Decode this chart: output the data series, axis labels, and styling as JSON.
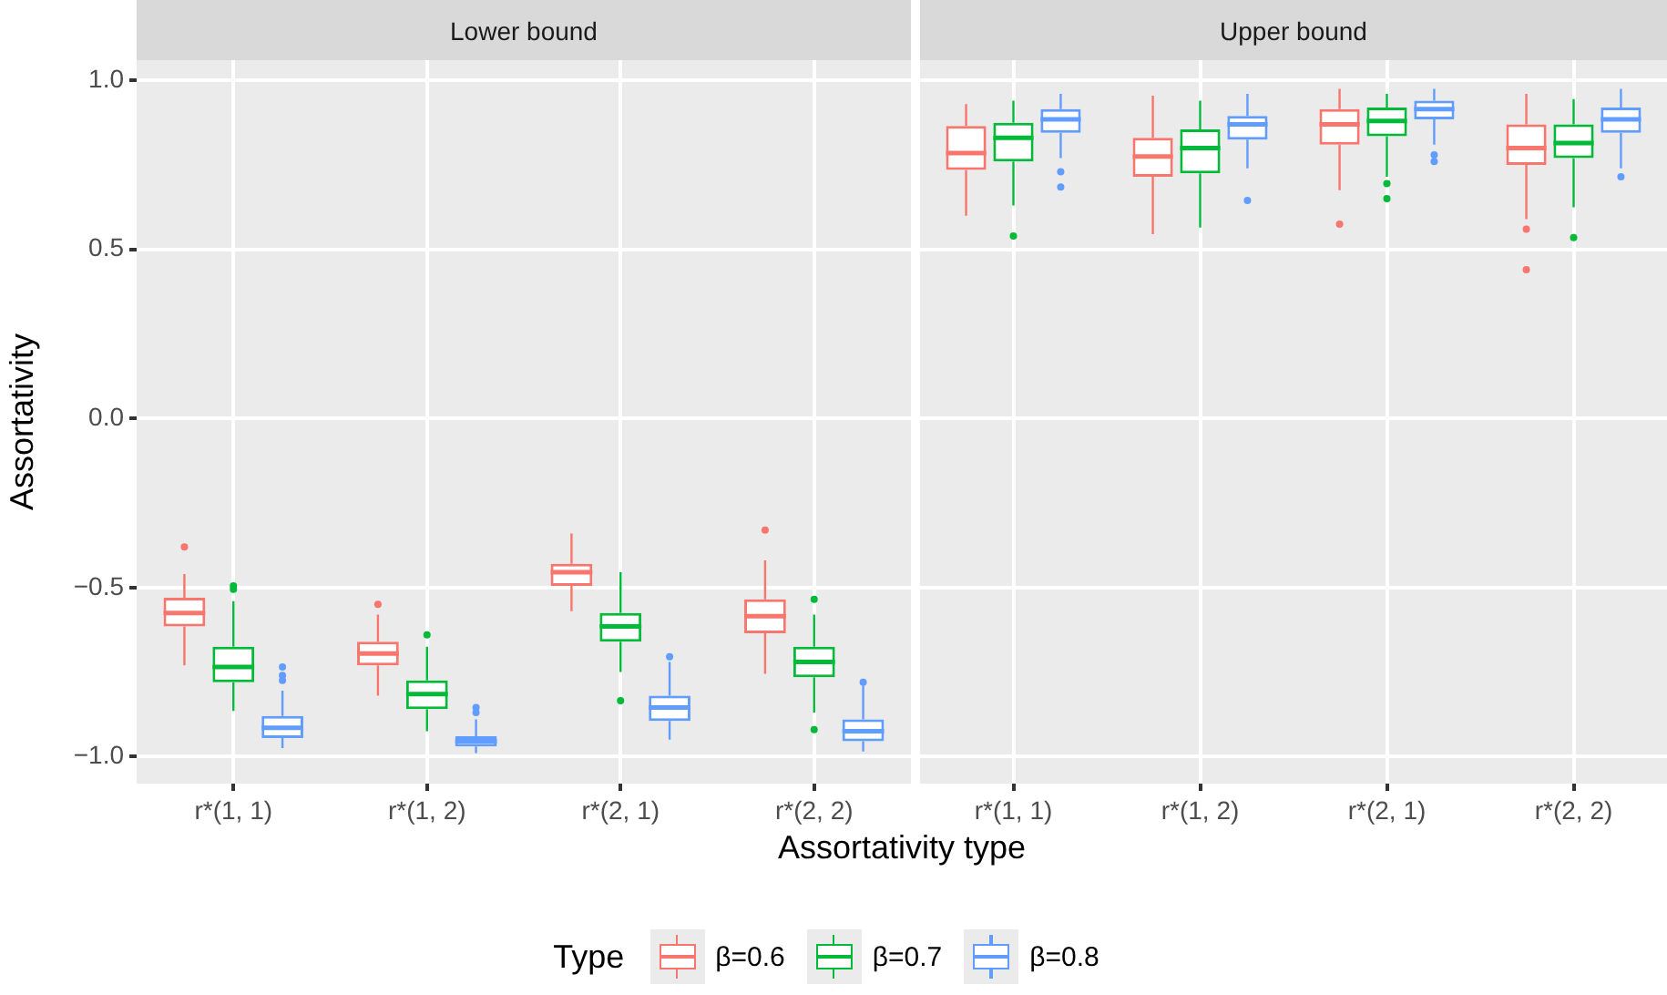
{
  "chart_data": [
    {
      "type": "box",
      "title": "Lower bound",
      "xlabel": "Assortativity type",
      "ylabel": "Assortativity",
      "legend_title": "Type",
      "legend": "bottom",
      "grid": true,
      "categories": [
        "r*(1, 1)",
        "r*(1, 2)",
        "r*(2, 1)",
        "r*(2, 2)"
      ],
      "ylim": [
        -1.08,
        1.06
      ],
      "yticks": [
        {
          "value": -1,
          "label": "−1.0"
        },
        {
          "value": -0.5,
          "label": "−0.5"
        },
        {
          "value": 0,
          "label": "0.0"
        },
        {
          "value": 0.5,
          "label": "0.5"
        },
        {
          "value": 1,
          "label": "1.0"
        }
      ],
      "series": [
        {
          "name": "β=0.6",
          "color": "#f8766d",
          "boxes": [
            {
              "low": -0.73,
              "q1": -0.615,
              "median": -0.575,
              "q3": -0.53,
              "high": -0.46,
              "outliers": [
                -0.38
              ]
            },
            {
              "low": -0.82,
              "q1": -0.73,
              "median": -0.695,
              "q3": -0.66,
              "high": -0.58,
              "outliers": [
                -0.55
              ]
            },
            {
              "low": -0.57,
              "q1": -0.495,
              "median": -0.455,
              "q3": -0.43,
              "high": -0.34
            },
            {
              "low": -0.755,
              "q1": -0.635,
              "median": -0.585,
              "q3": -0.535,
              "high": -0.42,
              "outliers": [
                -0.33
              ]
            }
          ]
        },
        {
          "name": "β=0.7",
          "color": "#00ba38",
          "boxes": [
            {
              "low": -0.865,
              "q1": -0.78,
              "median": -0.735,
              "q3": -0.675,
              "high": -0.54,
              "outliers": [
                -0.495,
                -0.505
              ]
            },
            {
              "low": -0.925,
              "q1": -0.86,
              "median": -0.815,
              "q3": -0.775,
              "high": -0.675,
              "outliers": [
                -0.64
              ]
            },
            {
              "low": -0.75,
              "q1": -0.66,
              "median": -0.615,
              "q3": -0.575,
              "high": -0.455,
              "outliers": [
                -0.835
              ]
            },
            {
              "low": -0.87,
              "q1": -0.765,
              "median": -0.72,
              "q3": -0.675,
              "high": -0.58,
              "outliers": [
                -0.535,
                -0.92
              ]
            }
          ]
        },
        {
          "name": "β=0.8",
          "color": "#619cff",
          "boxes": [
            {
              "low": -0.975,
              "q1": -0.945,
              "median": -0.915,
              "q3": -0.88,
              "high": -0.805,
              "outliers": [
                -0.735,
                -0.76,
                -0.775
              ]
            },
            {
              "low": -0.99,
              "q1": -0.97,
              "median": -0.955,
              "q3": -0.94,
              "high": -0.89,
              "outliers": [
                -0.855,
                -0.87
              ]
            },
            {
              "low": -0.95,
              "q1": -0.895,
              "median": -0.855,
              "q3": -0.82,
              "high": -0.72,
              "outliers": [
                -0.705
              ]
            },
            {
              "low": -0.985,
              "q1": -0.955,
              "median": -0.925,
              "q3": -0.89,
              "high": -0.79,
              "outliers": [
                -0.78
              ]
            }
          ]
        }
      ]
    },
    {
      "type": "box",
      "title": "Upper bound",
      "grid": true,
      "tick_labels": "x",
      "categories": [
        "r*(1, 1)",
        "r*(1, 2)",
        "r*(2, 1)",
        "r*(2, 2)"
      ],
      "ylim": [
        -1.08,
        1.06
      ],
      "yticks": [
        -1,
        -0.5,
        0,
        0.5,
        1
      ],
      "series": [
        {
          "color": "#f8766d",
          "boxes": [
            {
              "low": 0.6,
              "q1": 0.735,
              "median": 0.785,
              "q3": 0.865,
              "high": 0.93
            },
            {
              "low": 0.545,
              "q1": 0.715,
              "median": 0.775,
              "q3": 0.83,
              "high": 0.955
            },
            {
              "low": 0.675,
              "q1": 0.81,
              "median": 0.87,
              "q3": 0.915,
              "high": 0.975,
              "outliers": [
                0.575
              ]
            },
            {
              "low": 0.59,
              "q1": 0.75,
              "median": 0.8,
              "q3": 0.87,
              "high": 0.96,
              "outliers": [
                0.56,
                0.44
              ]
            }
          ]
        },
        {
          "color": "#00ba38",
          "boxes": [
            {
              "low": 0.63,
              "q1": 0.76,
              "median": 0.83,
              "q3": 0.875,
              "high": 0.94,
              "outliers": [
                0.54
              ]
            },
            {
              "low": 0.565,
              "q1": 0.725,
              "median": 0.8,
              "q3": 0.855,
              "high": 0.94
            },
            {
              "low": 0.715,
              "q1": 0.835,
              "median": 0.88,
              "q3": 0.92,
              "high": 0.96,
              "outliers": [
                0.695,
                0.65
              ]
            },
            {
              "low": 0.625,
              "q1": 0.77,
              "median": 0.815,
              "q3": 0.87,
              "high": 0.945,
              "outliers": [
                0.535
              ]
            }
          ]
        },
        {
          "color": "#619cff",
          "boxes": [
            {
              "low": 0.77,
              "q1": 0.845,
              "median": 0.885,
              "q3": 0.915,
              "high": 0.96,
              "outliers": [
                0.73,
                0.685
              ]
            },
            {
              "low": 0.74,
              "q1": 0.825,
              "median": 0.87,
              "q3": 0.895,
              "high": 0.96,
              "outliers": [
                0.645
              ]
            },
            {
              "low": 0.81,
              "q1": 0.885,
              "median": 0.915,
              "q3": 0.94,
              "high": 0.975,
              "outliers": [
                0.78,
                0.76
              ]
            },
            {
              "low": 0.74,
              "q1": 0.845,
              "median": 0.885,
              "q3": 0.92,
              "high": 0.975,
              "outliers": [
                0.715
              ]
            }
          ]
        }
      ]
    }
  ]
}
